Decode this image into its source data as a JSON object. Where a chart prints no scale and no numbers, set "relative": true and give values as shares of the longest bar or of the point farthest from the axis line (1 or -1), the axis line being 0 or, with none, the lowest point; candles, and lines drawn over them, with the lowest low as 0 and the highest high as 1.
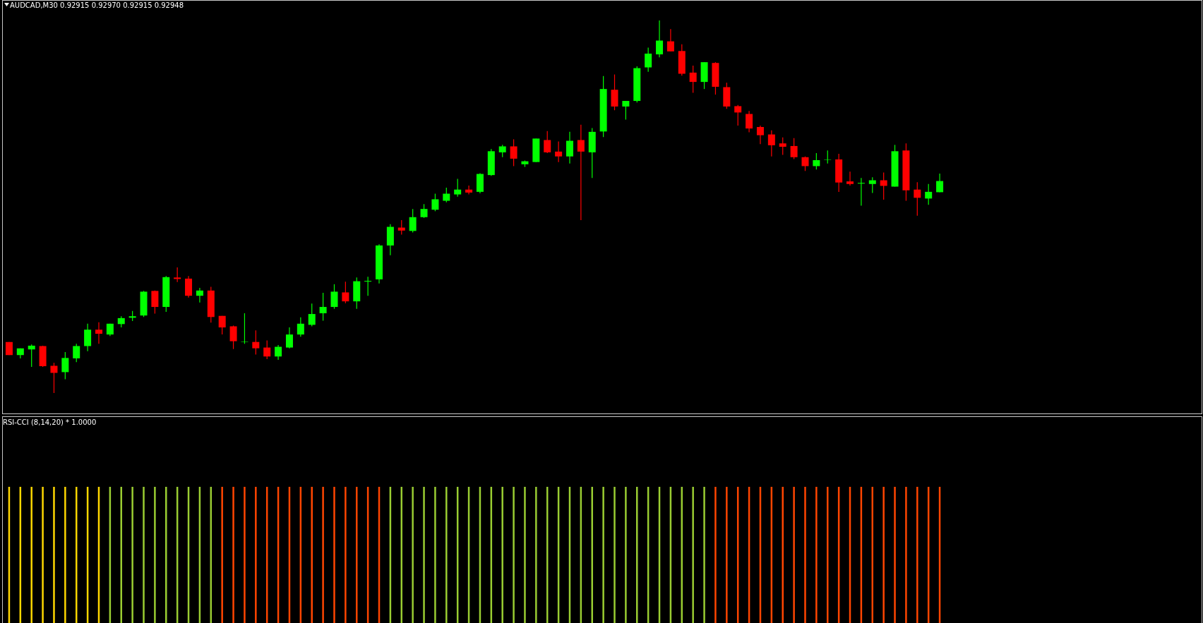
{
  "chart_data": [
    {
      "type": "candlestick",
      "title": "AUDCAD,M30 0.92915 0.92970 0.92915 0.92948",
      "relative": true,
      "categories": [
        null,
        null,
        null,
        null,
        null,
        null,
        null,
        null,
        null,
        null,
        null,
        null,
        null,
        null,
        null,
        null,
        null,
        null,
        null,
        null,
        null,
        null,
        null,
        null,
        null,
        null,
        null,
        null,
        null,
        null,
        null,
        null,
        null,
        null,
        null,
        null,
        null,
        null,
        null,
        null,
        null,
        null,
        null,
        null,
        null,
        null,
        null,
        null,
        null,
        null,
        null,
        null,
        null,
        null,
        null,
        null,
        null,
        null,
        null,
        null,
        null,
        null,
        null,
        null,
        null,
        null,
        null,
        null,
        null,
        null,
        null,
        null,
        null,
        null,
        null,
        null,
        null,
        null,
        null,
        null,
        null,
        null,
        null,
        null
      ],
      "ohlc": [
        [
          0.137,
          0.137,
          0.102,
          0.102
        ],
        [
          0.102,
          0.12,
          0.093,
          0.12
        ],
        [
          0.117,
          0.13,
          0.07,
          0.127
        ],
        [
          0.126,
          0.127,
          0.07,
          0.072
        ],
        [
          0.073,
          0.081,
          0.0,
          0.054
        ],
        [
          0.056,
          0.11,
          0.037,
          0.094
        ],
        [
          0.093,
          0.132,
          0.083,
          0.126
        ],
        [
          0.126,
          0.186,
          0.112,
          0.17
        ],
        [
          0.17,
          0.19,
          0.132,
          0.159
        ],
        [
          0.157,
          0.186,
          0.153,
          0.186
        ],
        [
          0.185,
          0.206,
          0.176,
          0.201
        ],
        [
          0.202,
          0.22,
          0.193,
          0.206
        ],
        [
          0.208,
          0.274,
          0.204,
          0.272
        ],
        [
          0.274,
          0.275,
          0.213,
          0.231
        ],
        [
          0.231,
          0.314,
          0.218,
          0.311
        ],
        [
          0.31,
          0.337,
          0.298,
          0.306
        ],
        [
          0.307,
          0.314,
          0.256,
          0.261
        ],
        [
          0.261,
          0.282,
          0.243,
          0.275
        ],
        [
          0.275,
          0.285,
          0.189,
          0.204
        ],
        [
          0.207,
          0.207,
          0.157,
          0.176
        ],
        [
          0.179,
          0.181,
          0.118,
          0.139
        ],
        [
          0.137,
          0.214,
          0.132,
          0.138
        ],
        [
          0.137,
          0.168,
          0.103,
          0.12
        ],
        [
          0.122,
          0.141,
          0.091,
          0.098
        ],
        [
          0.098,
          0.129,
          0.089,
          0.124
        ],
        [
          0.122,
          0.176,
          0.12,
          0.157
        ],
        [
          0.157,
          0.203,
          0.151,
          0.186
        ],
        [
          0.183,
          0.24,
          0.179,
          0.212
        ],
        [
          0.214,
          0.269,
          0.194,
          0.231
        ],
        [
          0.231,
          0.292,
          0.226,
          0.272
        ],
        [
          0.27,
          0.299,
          0.241,
          0.246
        ],
        [
          0.246,
          0.31,
          0.226,
          0.3
        ],
        [
          0.299,
          0.312,
          0.261,
          0.301
        ],
        [
          0.305,
          0.399,
          0.294,
          0.396
        ],
        [
          0.396,
          0.453,
          0.37,
          0.446
        ],
        [
          0.444,
          0.464,
          0.425,
          0.436
        ],
        [
          0.435,
          0.494,
          0.431,
          0.472
        ],
        [
          0.472,
          0.507,
          0.47,
          0.494
        ],
        [
          0.492,
          0.535,
          0.488,
          0.52
        ],
        [
          0.516,
          0.551,
          0.512,
          0.535
        ],
        [
          0.533,
          0.575,
          0.527,
          0.546
        ],
        [
          0.546,
          0.557,
          0.533,
          0.538
        ],
        [
          0.54,
          0.59,
          0.536,
          0.588
        ],
        [
          0.585,
          0.655,
          0.583,
          0.649
        ],
        [
          0.646,
          0.666,
          0.633,
          0.662
        ],
        [
          0.662,
          0.681,
          0.609,
          0.629
        ],
        [
          0.614,
          0.624,
          0.607,
          0.622
        ],
        [
          0.62,
          0.683,
          0.62,
          0.683
        ],
        [
          0.679,
          0.703,
          0.644,
          0.646
        ],
        [
          0.648,
          0.675,
          0.62,
          0.635
        ],
        [
          0.635,
          0.701,
          0.616,
          0.677
        ],
        [
          0.679,
          0.72,
          0.464,
          0.648
        ],
        [
          0.646,
          0.711,
          0.577,
          0.701
        ],
        [
          0.702,
          0.851,
          0.687,
          0.816
        ],
        [
          0.814,
          0.855,
          0.759,
          0.769
        ],
        [
          0.769,
          0.784,
          0.734,
          0.784
        ],
        [
          0.784,
          0.877,
          0.78,
          0.872
        ],
        [
          0.874,
          0.927,
          0.862,
          0.911
        ],
        [
          0.909,
          1.0,
          0.901,
          0.946
        ],
        [
          0.944,
          0.977,
          0.917,
          0.917
        ],
        [
          0.918,
          0.936,
          0.852,
          0.857
        ],
        [
          0.86,
          0.879,
          0.806,
          0.835
        ],
        [
          0.835,
          0.888,
          0.816,
          0.888
        ],
        [
          0.886,
          0.888,
          0.801,
          0.822
        ],
        [
          0.821,
          0.833,
          0.763,
          0.769
        ],
        [
          0.77,
          0.773,
          0.718,
          0.753
        ],
        [
          0.749,
          0.757,
          0.7,
          0.71
        ],
        [
          0.714,
          0.718,
          0.668,
          0.692
        ],
        [
          0.694,
          0.705,
          0.635,
          0.665
        ],
        [
          0.67,
          0.686,
          0.639,
          0.661
        ],
        [
          0.663,
          0.684,
          0.628,
          0.633
        ],
        [
          0.633,
          0.635,
          0.596,
          0.609
        ],
        [
          0.609,
          0.644,
          0.6,
          0.625
        ],
        [
          0.626,
          0.651,
          0.616,
          0.627
        ],
        [
          0.627,
          0.642,
          0.54,
          0.565
        ],
        [
          0.568,
          0.594,
          0.557,
          0.561
        ],
        [
          0.562,
          0.577,
          0.503,
          0.564
        ],
        [
          0.561,
          0.579,
          0.537,
          0.571
        ],
        [
          0.571,
          0.592,
          0.519,
          0.556
        ],
        [
          0.554,
          0.666,
          0.554,
          0.649
        ],
        [
          0.651,
          0.67,
          0.516,
          0.544
        ],
        [
          0.546,
          0.566,
          0.476,
          0.524
        ],
        [
          0.522,
          0.561,
          0.505,
          0.54
        ],
        [
          0.539,
          0.589,
          0.539,
          0.569
        ]
      ],
      "colors": [
        "#ff0000",
        "#00ff00",
        "#00ff00",
        "#ff0000",
        "#ff0000",
        "#00ff00",
        "#00ff00",
        "#00ff00",
        "#ff0000",
        "#00ff00",
        "#00ff00",
        "#00ff00",
        "#00ff00",
        "#ff0000",
        "#00ff00",
        "#ff0000",
        "#ff0000",
        "#00ff00",
        "#ff0000",
        "#ff0000",
        "#ff0000",
        "#00ff00",
        "#ff0000",
        "#ff0000",
        "#00ff00",
        "#00ff00",
        "#00ff00",
        "#00ff00",
        "#00ff00",
        "#00ff00",
        "#ff0000",
        "#00ff00",
        "#00ff00",
        "#00ff00",
        "#00ff00",
        "#ff0000",
        "#00ff00",
        "#00ff00",
        "#00ff00",
        "#00ff00",
        "#00ff00",
        "#ff0000",
        "#00ff00",
        "#00ff00",
        "#00ff00",
        "#ff0000",
        "#00ff00",
        "#00ff00",
        "#ff0000",
        "#ff0000",
        "#00ff00",
        "#ff0000",
        "#00ff00",
        "#00ff00",
        "#ff0000",
        "#00ff00",
        "#00ff00",
        "#00ff00",
        "#00ff00",
        "#ff0000",
        "#ff0000",
        "#ff0000",
        "#00ff00",
        "#ff0000",
        "#ff0000",
        "#ff0000",
        "#ff0000",
        "#ff0000",
        "#ff0000",
        "#ff0000",
        "#ff0000",
        "#ff0000",
        "#00ff00",
        "#00ff00",
        "#ff0000",
        "#ff0000",
        "#00ff00",
        "#00ff00",
        "#ff0000",
        "#00ff00",
        "#ff0000",
        "#ff0000",
        "#00ff00",
        "#00ff00"
      ]
    },
    {
      "type": "bar",
      "title": "RSI-CCI (8,14,20) * 1.0000",
      "relative": true,
      "categories": [
        null,
        null,
        null,
        null,
        null,
        null,
        null,
        null,
        null,
        null,
        null,
        null,
        null,
        null,
        null,
        null,
        null,
        null,
        null,
        null,
        null,
        null,
        null,
        null,
        null,
        null,
        null,
        null,
        null,
        null,
        null,
        null,
        null,
        null,
        null,
        null,
        null,
        null,
        null,
        null,
        null,
        null,
        null,
        null,
        null,
        null,
        null,
        null,
        null,
        null,
        null,
        null,
        null,
        null,
        null,
        null,
        null,
        null,
        null,
        null,
        null,
        null,
        null,
        null,
        null,
        null,
        null,
        null,
        null,
        null,
        null,
        null,
        null,
        null,
        null,
        null,
        null,
        null,
        null,
        null,
        null,
        null,
        null,
        null
      ],
      "values": [
        1,
        1,
        1,
        1,
        1,
        1,
        1,
        1,
        1,
        1,
        1,
        1,
        1,
        1,
        1,
        1,
        1,
        1,
        1,
        1,
        1,
        1,
        1,
        1,
        1,
        1,
        1,
        1,
        1,
        1,
        1,
        1,
        1,
        1,
        1,
        1,
        1,
        1,
        1,
        1,
        1,
        1,
        1,
        1,
        1,
        1,
        1,
        1,
        1,
        1,
        1,
        1,
        1,
        1,
        1,
        1,
        1,
        1,
        1,
        1,
        1,
        1,
        1,
        1,
        1,
        1,
        1,
        1,
        1,
        1,
        1,
        1,
        1,
        1,
        1,
        1,
        1,
        1,
        1,
        1,
        1,
        1,
        1,
        1
      ],
      "colors": [
        "#ffd700",
        "#ffd700",
        "#ffd700",
        "#ffd700",
        "#ffd700",
        "#ffd700",
        "#ffd700",
        "#ffd700",
        "#ffd700",
        "#9acd32",
        "#9acd32",
        "#9acd32",
        "#9acd32",
        "#9acd32",
        "#9acd32",
        "#9acd32",
        "#9acd32",
        "#9acd32",
        "#9acd32",
        "#ff4500",
        "#ff4500",
        "#ff4500",
        "#ff4500",
        "#ff4500",
        "#ff4500",
        "#ff4500",
        "#ff4500",
        "#ff4500",
        "#ff4500",
        "#ff4500",
        "#ff4500",
        "#ff4500",
        "#ff4500",
        "#ff4500",
        "#9acd32",
        "#9acd32",
        "#9acd32",
        "#9acd32",
        "#9acd32",
        "#9acd32",
        "#9acd32",
        "#9acd32",
        "#9acd32",
        "#9acd32",
        "#9acd32",
        "#9acd32",
        "#9acd32",
        "#9acd32",
        "#9acd32",
        "#9acd32",
        "#9acd32",
        "#9acd32",
        "#9acd32",
        "#9acd32",
        "#9acd32",
        "#9acd32",
        "#9acd32",
        "#9acd32",
        "#9acd32",
        "#9acd32",
        "#9acd32",
        "#9acd32",
        "#9acd32",
        "#ff4500",
        "#ff4500",
        "#ff4500",
        "#ff4500",
        "#ff4500",
        "#ff4500",
        "#ff4500",
        "#ff4500",
        "#ff4500",
        "#ff4500",
        "#ff4500",
        "#ff4500",
        "#ff4500",
        "#ff4500",
        "#ff4500",
        "#ff4500",
        "#ff4500",
        "#ff4500",
        "#ff4500",
        "#ff4500",
        "#ff4500"
      ]
    }
  ]
}
